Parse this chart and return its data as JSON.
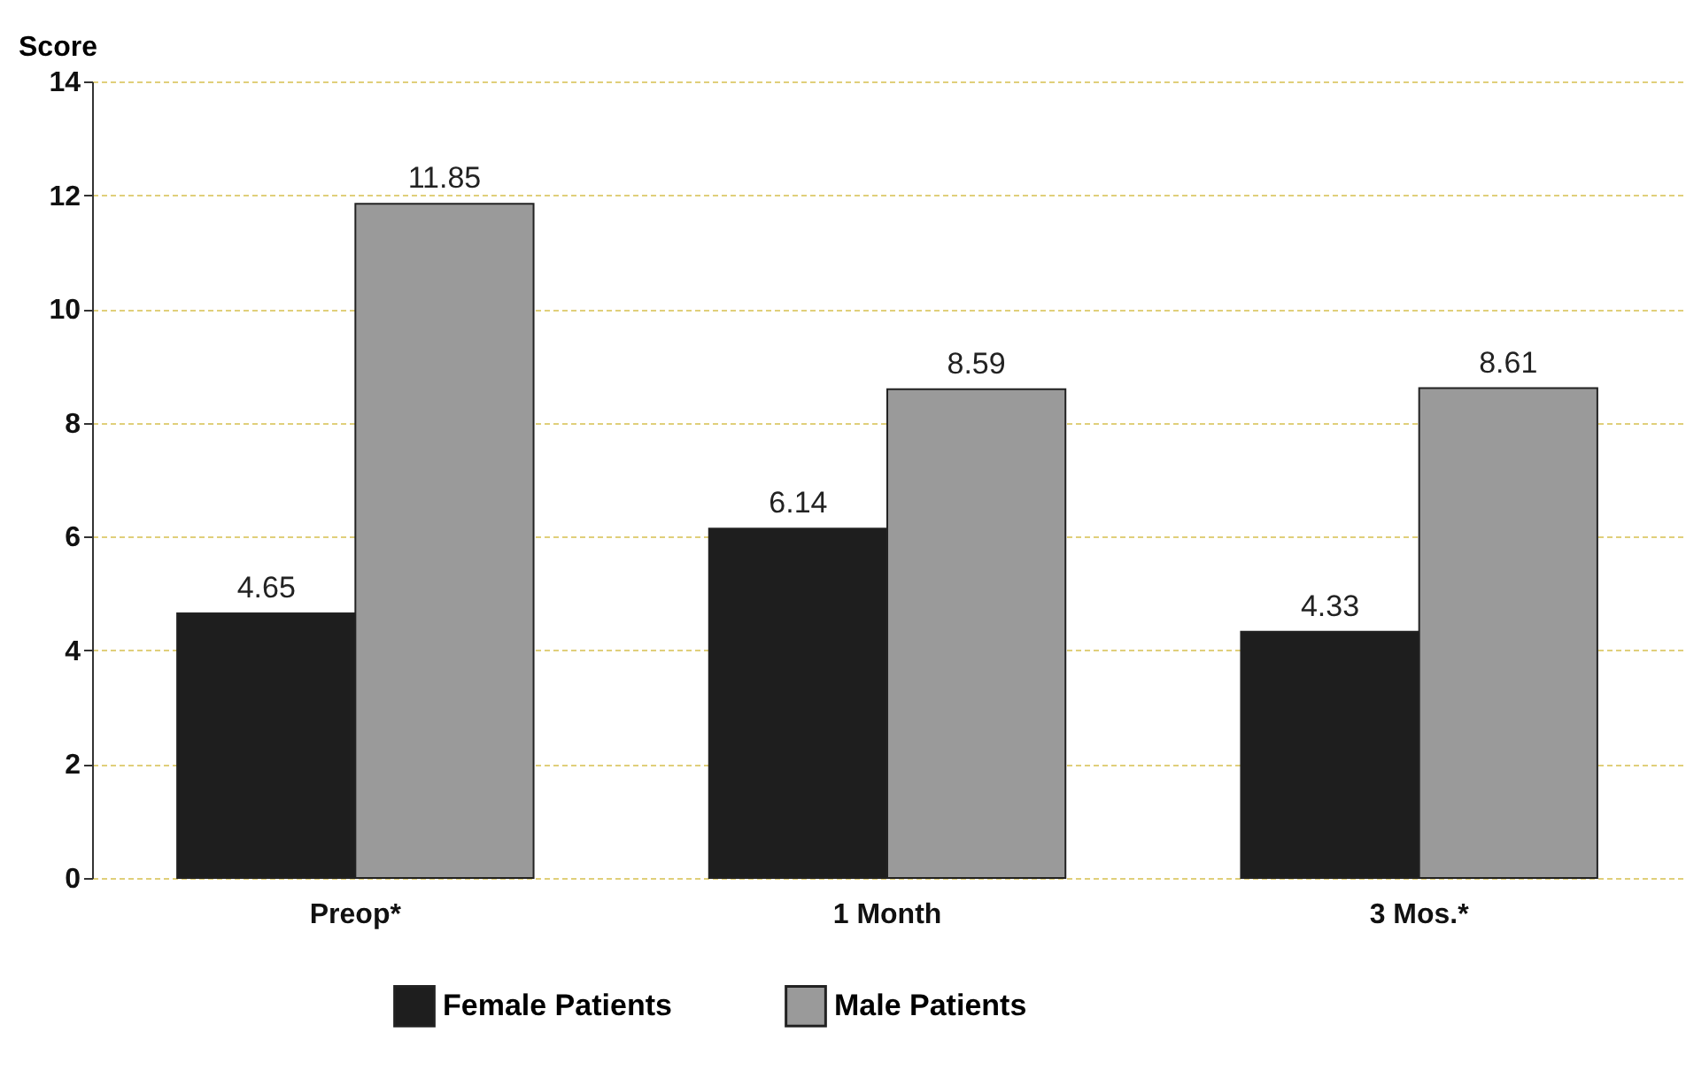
{
  "chart_data": {
    "type": "bar",
    "ylabel": "Score",
    "categories": [
      "Preop*",
      "1 Month",
      "3 Mos.*"
    ],
    "series": [
      {
        "name": "Female Patients",
        "color": "#1e1e1e",
        "values": [
          4.65,
          6.14,
          4.33
        ]
      },
      {
        "name": "Male Patients",
        "color": "#9a9a9a",
        "values": [
          11.85,
          8.59,
          8.61
        ]
      }
    ],
    "ylim": [
      0,
      14
    ],
    "yticks": [
      0,
      2,
      4,
      6,
      8,
      10,
      12,
      14
    ],
    "grid": "y",
    "legend": "bottom",
    "data_labels": true
  }
}
